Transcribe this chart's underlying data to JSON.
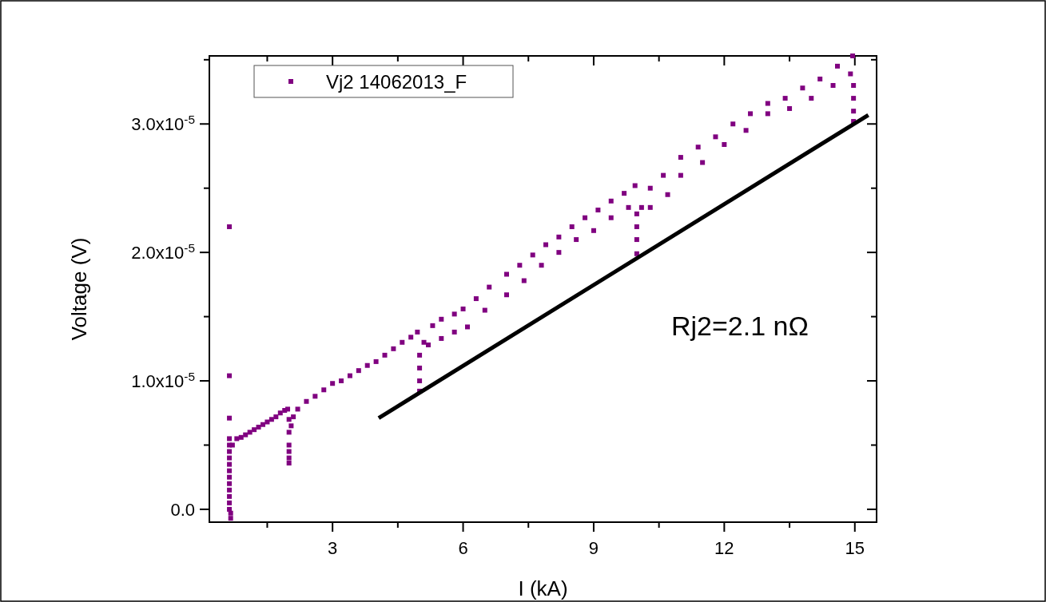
{
  "chart_data": {
    "type": "scatter",
    "xlabel": "I (kA)",
    "ylabel": "Voltage (V)",
    "xlim": [
      0.17,
      15.5
    ],
    "ylim": [
      -1e-06,
      3.53e-05
    ],
    "xticks": [
      {
        "value": 1.5,
        "label": null
      },
      3,
      {
        "value": 4.5,
        "label": null
      },
      6,
      {
        "value": 7.5,
        "label": null
      },
      9,
      {
        "value": 10.5,
        "label": null
      },
      12,
      {
        "value": 13.5,
        "label": null
      },
      15
    ],
    "yticks": [
      {
        "value": 0,
        "label": "0.0"
      },
      {
        "value": 5e-06,
        "label": null
      },
      {
        "value": 1e-05,
        "label": "1.0x10$^{-5}$"
      },
      {
        "value": 1.5e-05,
        "label": null
      },
      {
        "value": 2e-05,
        "label": "2.0x10$^{-5}$"
      },
      {
        "value": 2.5e-05,
        "label": null
      },
      {
        "value": 3e-05,
        "label": "3.0x10$^{-5}$"
      },
      {
        "value": 3.5e-05,
        "label": null
      }
    ],
    "grid": false,
    "legend": "top left",
    "annotations": [
      "Rj2=2.1 nΩ"
    ],
    "series": [
      {
        "name": "Vj2 14062013_F",
        "color": "#800080",
        "marker": "square",
        "x": [
          0.63,
          0.63,
          0.63,
          0.63,
          0.63,
          0.63,
          0.63,
          0.63,
          0.63,
          0.63,
          0.63,
          0.63,
          0.66,
          0.66,
          0.63,
          0.63,
          0.63,
          0.7,
          0.8,
          0.9,
          1.0,
          1.1,
          1.2,
          1.3,
          1.4,
          1.5,
          1.6,
          1.7,
          1.8,
          1.9,
          1.97,
          2.0,
          2.0,
          2.0,
          2.0,
          2.0,
          2.0,
          2.05,
          2.1,
          2.2,
          2.4,
          2.6,
          2.8,
          3.0,
          3.2,
          3.4,
          3.6,
          3.8,
          4.0,
          4.2,
          4.4,
          4.6,
          4.8,
          4.95,
          5.0,
          5.0,
          5.0,
          5.0,
          5.1,
          5.3,
          5.5,
          5.8,
          6.0,
          6.3,
          6.6,
          7.0,
          7.3,
          7.6,
          7.9,
          8.2,
          8.5,
          8.8,
          9.1,
          9.4,
          9.7,
          9.95,
          5.2,
          5.5,
          5.8,
          6.1,
          6.5,
          7.0,
          7.4,
          7.8,
          8.2,
          8.6,
          9.0,
          9.4,
          9.8,
          9.99,
          9.99,
          9.99,
          9.99,
          10.1,
          10.3,
          10.6,
          11.0,
          11.4,
          11.8,
          12.2,
          12.6,
          13.0,
          13.4,
          13.8,
          14.2,
          14.6,
          14.95,
          10.3,
          10.7,
          11.0,
          11.5,
          12.0,
          12.5,
          13.0,
          13.5,
          14.0,
          14.5,
          14.9,
          14.97,
          14.97,
          14.97,
          14.97
        ],
        "values": [
          5.5e-06,
          5e-06,
          4.5e-06,
          4e-06,
          3.5e-06,
          3e-06,
          2.5e-06,
          2e-06,
          1.5e-06,
          1e-06,
          5e-07,
          0.0,
          -3e-07,
          -7e-07,
          7.1e-06,
          1.04e-05,
          2.2e-05,
          5e-06,
          5.5e-06,
          5.6e-06,
          5.8e-06,
          6e-06,
          6.2e-06,
          6.4e-06,
          6.6e-06,
          6.8e-06,
          7e-06,
          7.2e-06,
          7.5e-06,
          7.7e-06,
          7.8e-06,
          7e-06,
          6e-06,
          5e-06,
          4.5e-06,
          4e-06,
          3.6e-06,
          6.5e-06,
          7.2e-06,
          7.8e-06,
          8.4e-06,
          8.8e-06,
          9.3e-06,
          9.8e-06,
          1e-05,
          1.04e-05,
          1.08e-05,
          1.12e-05,
          1.15e-05,
          1.2e-05,
          1.25e-05,
          1.3e-05,
          1.34e-05,
          1.38e-05,
          1.2e-05,
          1.1e-05,
          1e-05,
          9.2e-06,
          1.3e-05,
          1.43e-05,
          1.48e-05,
          1.52e-05,
          1.56e-05,
          1.64e-05,
          1.73e-05,
          1.83e-05,
          1.9e-05,
          1.98e-05,
          2.06e-05,
          2.12e-05,
          2.2e-05,
          2.27e-05,
          2.33e-05,
          2.4e-05,
          2.46e-05,
          2.52e-05,
          1.28e-05,
          1.33e-05,
          1.38e-05,
          1.42e-05,
          1.55e-05,
          1.67e-05,
          1.78e-05,
          1.9e-05,
          2e-05,
          2.1e-05,
          2.17e-05,
          2.27e-05,
          2.35e-05,
          2.3e-05,
          2.2e-05,
          2.1e-05,
          1.99e-05,
          2.35e-05,
          2.5e-05,
          2.6e-05,
          2.74e-05,
          2.82e-05,
          2.9e-05,
          3e-05,
          3.08e-05,
          3.16e-05,
          3.2e-05,
          3.28e-05,
          3.35e-05,
          3.45e-05,
          3.53e-05,
          2.35e-05,
          2.45e-05,
          2.6e-05,
          2.7e-05,
          2.84e-05,
          2.95e-05,
          3.08e-05,
          3.12e-05,
          3.2e-05,
          3.3e-05,
          3.39e-05,
          3.3e-05,
          3.2e-05,
          3.1e-05,
          3.02e-05
        ]
      },
      {
        "color": "#000000",
        "type": "line",
        "marker": "none",
        "x": [
          4.06,
          15.31
        ],
        "values": [
          7.1e-06,
          3.07e-05
        ]
      }
    ]
  }
}
